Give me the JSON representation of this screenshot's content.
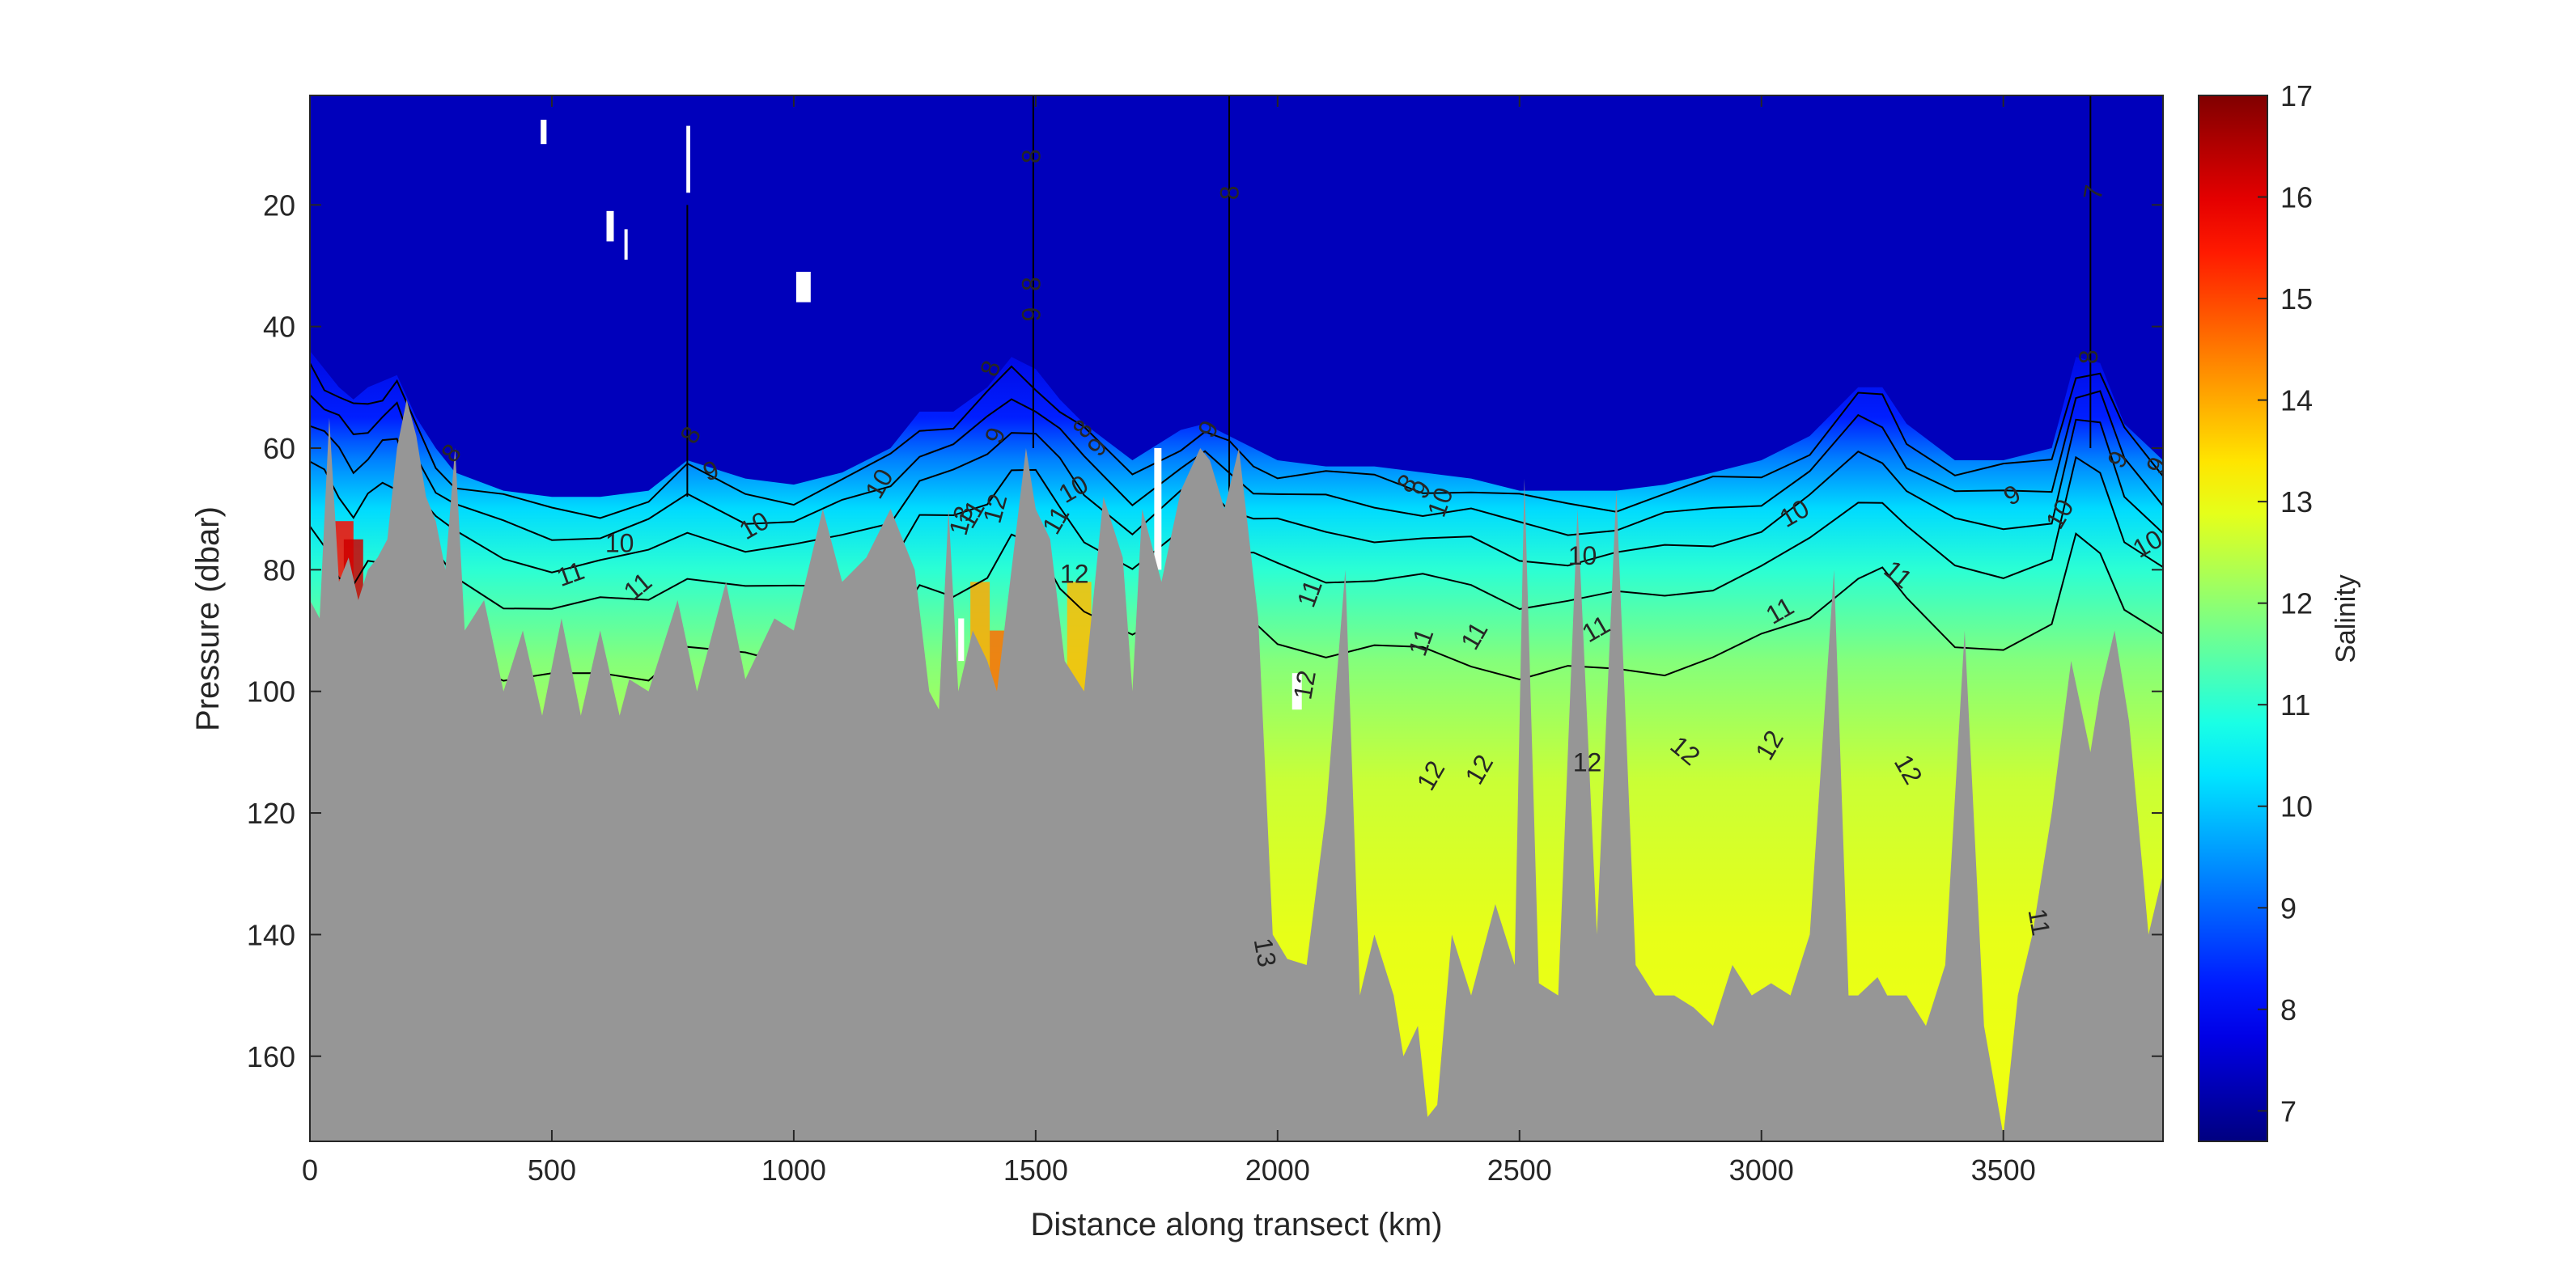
{
  "chart_data": {
    "type": "heatmap",
    "subtype": "filled-contour section (salinity vs distance and pressure)",
    "title": "",
    "xlabel": "Distance along transect (km)",
    "ylabel": "Pressure (dbar)",
    "colorbar_label": "Salinity",
    "xlim": [
      0,
      3830
    ],
    "ylim": [
      2,
      174
    ],
    "y_reversed": true,
    "x_ticks": [
      0,
      500,
      1000,
      1500,
      2000,
      2500,
      3000,
      3500
    ],
    "y_ticks": [
      20,
      40,
      60,
      80,
      100,
      120,
      140,
      160
    ],
    "colorbar_range": [
      6.7,
      17
    ],
    "colorbar_ticks": [
      7,
      8,
      9,
      10,
      11,
      12,
      13,
      14,
      15,
      16,
      17
    ],
    "colormap": "jet",
    "bathymetry_color": "#969696",
    "halocline_depth": {
      "x": [
        0,
        30,
        60,
        90,
        120,
        150,
        180,
        220,
        260,
        300,
        400,
        500,
        600,
        700,
        780,
        900,
        1000,
        1100,
        1200,
        1260,
        1330,
        1400,
        1450,
        1500,
        1550,
        1600,
        1700,
        1800,
        1850,
        1900,
        1950,
        2000,
        2100,
        2200,
        2300,
        2400,
        2500,
        2600,
        2700,
        2800,
        2900,
        3000,
        3100,
        3200,
        3250,
        3300,
        3400,
        3500,
        3600,
        3650,
        3700,
        3750,
        3830
      ],
      "pressure": [
        44,
        47,
        50,
        52,
        50,
        49,
        48,
        55,
        60,
        64,
        67,
        68,
        68,
        67,
        62,
        65,
        66,
        64,
        60,
        54,
        54,
        50,
        45,
        47,
        52,
        56,
        62,
        57,
        56,
        58,
        60,
        62,
        63,
        63,
        64,
        65,
        67,
        67,
        67,
        66,
        64,
        62,
        58,
        50,
        50,
        56,
        62,
        62,
        60,
        45,
        46,
        56,
        62
      ]
    },
    "bottom_depth": {
      "x": [
        0,
        20,
        40,
        60,
        80,
        100,
        120,
        140,
        160,
        180,
        200,
        220,
        240,
        260,
        280,
        300,
        320,
        360,
        400,
        440,
        480,
        520,
        560,
        600,
        640,
        660,
        700,
        760,
        800,
        860,
        900,
        960,
        1000,
        1060,
        1100,
        1150,
        1200,
        1250,
        1280,
        1300,
        1320,
        1340,
        1370,
        1400,
        1420,
        1450,
        1480,
        1500,
        1530,
        1560,
        1600,
        1640,
        1680,
        1700,
        1720,
        1760,
        1800,
        1840,
        1860,
        1890,
        1920,
        1960,
        1990,
        2020,
        2060,
        2100,
        2140,
        2170,
        2200,
        2240,
        2260,
        2290,
        2310,
        2330,
        2360,
        2400,
        2450,
        2490,
        2510,
        2540,
        2580,
        2620,
        2660,
        2700,
        2740,
        2780,
        2820,
        2860,
        2900,
        2940,
        2980,
        3020,
        3060,
        3100,
        3150,
        3180,
        3200,
        3240,
        3260,
        3300,
        3340,
        3380,
        3420,
        3460,
        3500,
        3530,
        3560,
        3600,
        3640,
        3680,
        3700,
        3730,
        3760,
        3800,
        3830
      ],
      "pressure": [
        85,
        88,
        55,
        82,
        78,
        85,
        80,
        78,
        75,
        60,
        52,
        58,
        68,
        72,
        80,
        60,
        90,
        85,
        100,
        90,
        104,
        88,
        104,
        90,
        104,
        98,
        100,
        85,
        100,
        82,
        98,
        88,
        90,
        70,
        82,
        78,
        70,
        80,
        100,
        103,
        70,
        100,
        90,
        95,
        100,
        80,
        60,
        70,
        75,
        95,
        100,
        68,
        78,
        100,
        70,
        82,
        67,
        60,
        62,
        70,
        60,
        88,
        140,
        144,
        145,
        120,
        80,
        150,
        140,
        150,
        160,
        155,
        170,
        168,
        140,
        150,
        135,
        145,
        65,
        148,
        150,
        70,
        140,
        67,
        145,
        150,
        150,
        152,
        155,
        145,
        150,
        148,
        150,
        140,
        80,
        150,
        150,
        147,
        150,
        150,
        155,
        145,
        90,
        155,
        173,
        150,
        140,
        120,
        95,
        110,
        100,
        90,
        105,
        140,
        130
      ]
    },
    "gaps": [
      {
        "x": [
          477,
          489
        ],
        "pressure": [
          6,
          10
        ]
      },
      {
        "x": [
          778,
          786
        ],
        "pressure": [
          7,
          18
        ]
      },
      {
        "x": [
          613,
          628
        ],
        "pressure": [
          21,
          26
        ]
      },
      {
        "x": [
          650,
          656
        ],
        "pressure": [
          24,
          29
        ]
      },
      {
        "x": [
          1005,
          1035
        ],
        "pressure": [
          31,
          36
        ]
      },
      {
        "x": [
          1745,
          1760
        ],
        "pressure": [
          60,
          80
        ]
      },
      {
        "x": [
          2030,
          2050
        ],
        "pressure": [
          97,
          103
        ]
      },
      {
        "x": [
          1340,
          1352
        ],
        "pressure": [
          88,
          95
        ]
      }
    ],
    "contour_labels": [
      {
        "text": "8",
        "x": 295,
        "pressure": 61,
        "rotate": -50
      },
      {
        "text": "8",
        "x": 790,
        "pressure": 58,
        "rotate": -60
      },
      {
        "text": "9",
        "x": 830,
        "pressure": 64,
        "rotate": -20
      },
      {
        "text": "10",
        "x": 920,
        "pressure": 73,
        "rotate": -30
      },
      {
        "text": "10",
        "x": 640,
        "pressure": 76,
        "rotate": 0
      },
      {
        "text": "11",
        "x": 540,
        "pressure": 81,
        "rotate": -20
      },
      {
        "text": "11",
        "x": 680,
        "pressure": 83,
        "rotate": -40
      },
      {
        "text": "10",
        "x": 1180,
        "pressure": 66,
        "rotate": -60
      },
      {
        "text": "11",
        "x": 1370,
        "pressure": 71,
        "rotate": -60
      },
      {
        "text": "12",
        "x": 1420,
        "pressure": 70,
        "rotate": -75
      },
      {
        "text": "13",
        "x": 1350,
        "pressure": 72,
        "rotate": -75
      },
      {
        "text": "8",
        "x": 1410,
        "pressure": 47,
        "rotate": -70
      },
      {
        "text": "9",
        "x": 1420,
        "pressure": 58,
        "rotate": -70
      },
      {
        "text": "8",
        "x": 1495,
        "pressure": 12,
        "rotate": -90
      },
      {
        "text": "8",
        "x": 1495,
        "pressure": 33,
        "rotate": -90
      },
      {
        "text": "9",
        "x": 1495,
        "pressure": 38,
        "rotate": -90
      },
      {
        "text": "8",
        "x": 1600,
        "pressure": 57,
        "rotate": -50
      },
      {
        "text": "9",
        "x": 1630,
        "pressure": 60,
        "rotate": -50
      },
      {
        "text": "10",
        "x": 1580,
        "pressure": 67,
        "rotate": -30
      },
      {
        "text": "11",
        "x": 1545,
        "pressure": 72,
        "rotate": -60
      },
      {
        "text": "12",
        "x": 1580,
        "pressure": 81,
        "rotate": 0
      },
      {
        "text": "9",
        "x": 1860,
        "pressure": 57,
        "rotate": -60
      },
      {
        "text": "8",
        "x": 1905,
        "pressure": 18,
        "rotate": -90
      },
      {
        "text": "11",
        "x": 2070,
        "pressure": 84,
        "rotate": -70
      },
      {
        "text": "12",
        "x": 2060,
        "pressure": 99,
        "rotate": -80
      },
      {
        "text": "13",
        "x": 1970,
        "pressure": 143,
        "rotate": 80
      },
      {
        "text": "8",
        "x": 2270,
        "pressure": 66,
        "rotate": -50
      },
      {
        "text": "9",
        "x": 2300,
        "pressure": 67,
        "rotate": -50
      },
      {
        "text": "10",
        "x": 2340,
        "pressure": 69,
        "rotate": -70
      },
      {
        "text": "11",
        "x": 2300,
        "pressure": 92,
        "rotate": -70
      },
      {
        "text": "11",
        "x": 2410,
        "pressure": 91,
        "rotate": -60
      },
      {
        "text": "12",
        "x": 2320,
        "pressure": 114,
        "rotate": -60
      },
      {
        "text": "12",
        "x": 2420,
        "pressure": 113,
        "rotate": -60
      },
      {
        "text": "11",
        "x": 2660,
        "pressure": 90,
        "rotate": -30
      },
      {
        "text": "10",
        "x": 2630,
        "pressure": 78,
        "rotate": 0
      },
      {
        "text": "12",
        "x": 2640,
        "pressure": 112,
        "rotate": 0
      },
      {
        "text": "12",
        "x": 2840,
        "pressure": 110,
        "rotate": 40
      },
      {
        "text": "12",
        "x": 3020,
        "pressure": 109,
        "rotate": -60
      },
      {
        "text": "11",
        "x": 3040,
        "pressure": 87,
        "rotate": -30
      },
      {
        "text": "10",
        "x": 3070,
        "pressure": 71,
        "rotate": -30
      },
      {
        "text": "11",
        "x": 3280,
        "pressure": 81,
        "rotate": 40
      },
      {
        "text": "12",
        "x": 3300,
        "pressure": 113,
        "rotate": 60
      },
      {
        "text": "9",
        "x": 3520,
        "pressure": 68,
        "rotate": -30
      },
      {
        "text": "10",
        "x": 3620,
        "pressure": 71,
        "rotate": -60
      },
      {
        "text": "8",
        "x": 3680,
        "pressure": 45,
        "rotate": -90
      },
      {
        "text": "7",
        "x": 3690,
        "pressure": 18,
        "rotate": -80
      },
      {
        "text": "9",
        "x": 3740,
        "pressure": 62,
        "rotate": -60
      },
      {
        "text": "9",
        "x": 3820,
        "pressure": 63,
        "rotate": -60
      },
      {
        "text": "10",
        "x": 3800,
        "pressure": 76,
        "rotate": -30
      },
      {
        "text": "11",
        "x": 3570,
        "pressure": 138,
        "rotate": 80
      }
    ]
  }
}
